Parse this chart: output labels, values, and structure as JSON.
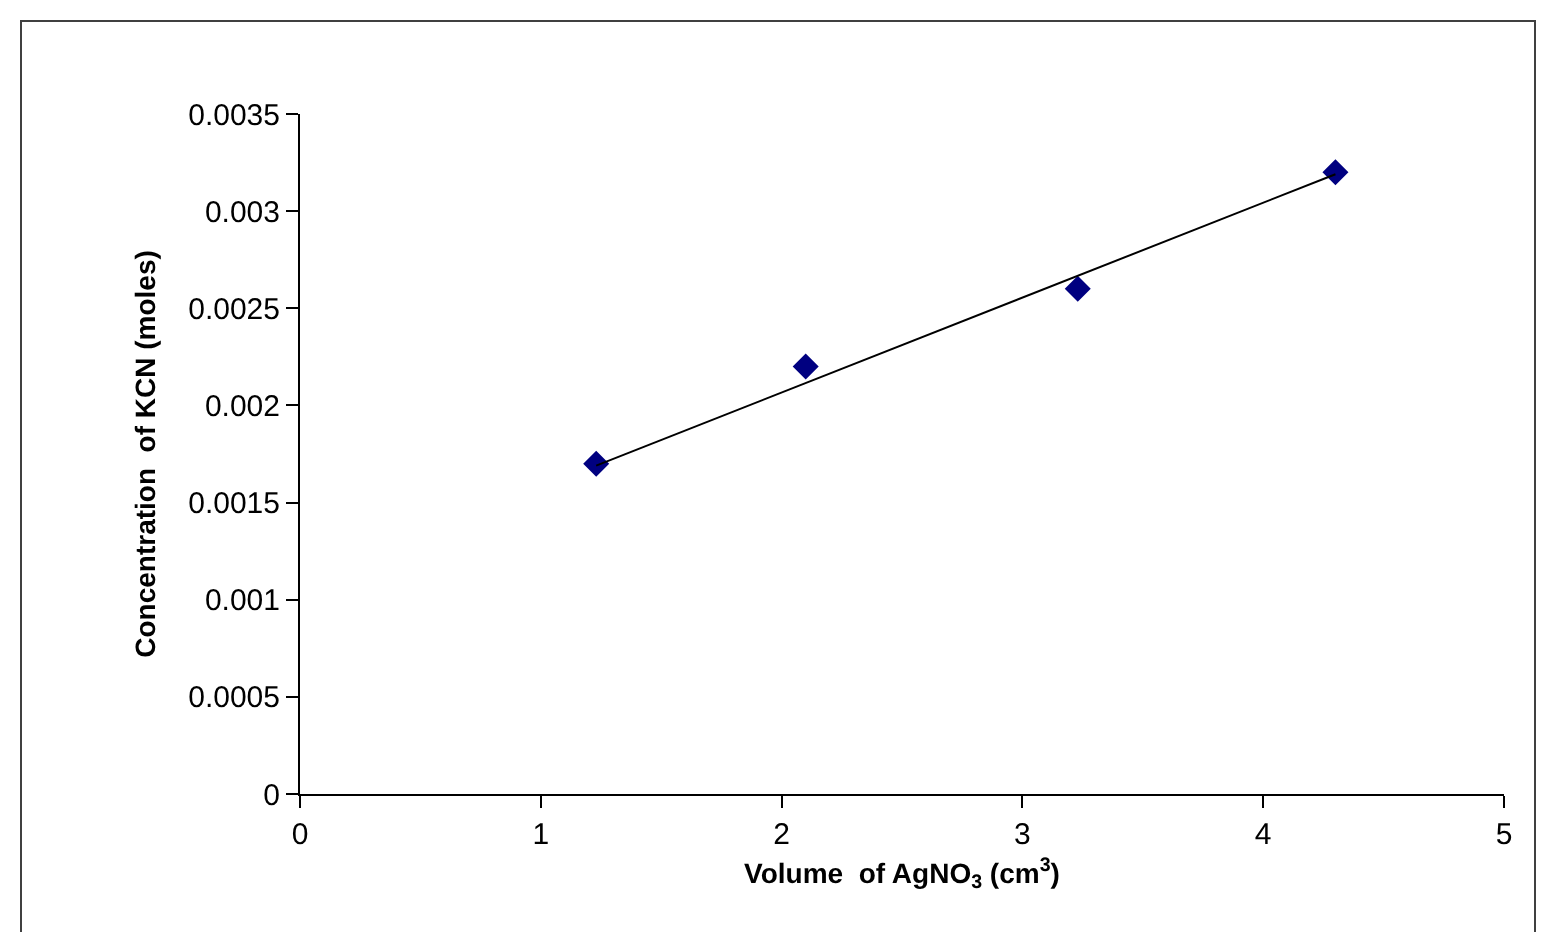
{
  "chart_data": {
    "type": "scatter",
    "xlabel": "Volume  of AgNO$_{3}$ (cm$^{3}$)",
    "ylabel": "Concentration  of KCN (moles)",
    "series": [
      {
        "color": "#000080",
        "marker": "diamond",
        "x": [
          1.23,
          2.1,
          3.23,
          4.3
        ],
        "values": [
          0.0017,
          0.0022,
          0.0026,
          0.0032
        ]
      },
      {
        "type": "line",
        "color": "#000000",
        "marker": "none",
        "line_style": "solid",
        "x": [
          1.23,
          4.3
        ],
        "values": [
          0.00169,
          0.00319
        ]
      }
    ],
    "xlim": [
      0,
      5
    ],
    "xticks": [
      0,
      1,
      2,
      3,
      4,
      5
    ],
    "ylim": [
      0,
      0.0035
    ],
    "yticks": [
      0,
      0.0005,
      0.001,
      0.0015,
      0.002,
      0.0025,
      0.003,
      0.0035
    ],
    "grid": false
  }
}
